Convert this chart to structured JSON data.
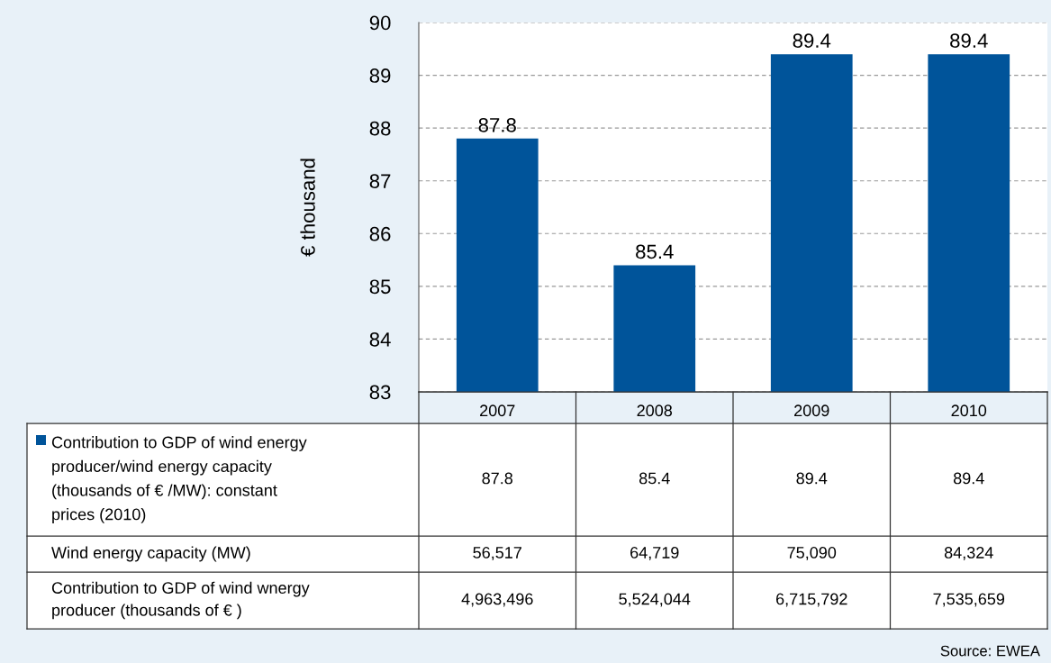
{
  "chart_data": {
    "type": "bar",
    "ylabel": "€ thousand",
    "categories": [
      "2007",
      "2008",
      "2009",
      "2010"
    ],
    "series": [
      {
        "name": "Contribution to GDP of wind energy\nproducer/wind energy capacity\n(thousands of € /MW): constant\nprices (2010)",
        "color": "#00549a",
        "values": [
          87.8,
          85.4,
          89.4,
          89.4
        ],
        "value_labels": [
          "87.8",
          "85.4",
          "89.4",
          "89.4"
        ]
      }
    ],
    "ylim": [
      83,
      90
    ],
    "yticks": [
      83,
      84,
      85,
      86,
      87,
      88,
      89,
      90
    ],
    "grid": "y",
    "legend": "bottom",
    "annotations": [
      "87.8",
      "85.4",
      "89.4",
      "89.4",
      "Wind energy capacity (MW)",
      "56,517",
      "64,719",
      "75,090",
      "84,324",
      "Contribution to GDP of wind wnergy\nproducer (thousands of € )",
      "4,963,496",
      "5,524,044",
      "6,715,792",
      "7,535,659",
      "Source: EWEA"
    ]
  }
}
